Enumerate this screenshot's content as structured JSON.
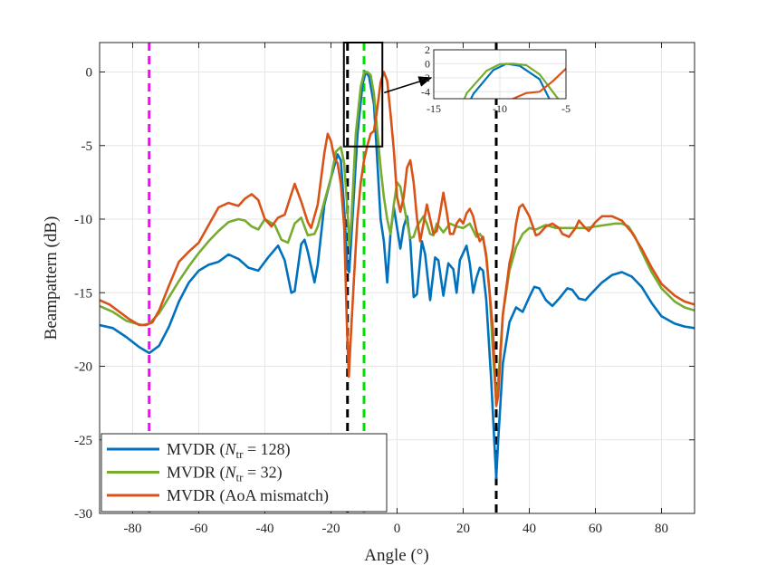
{
  "chart_data": {
    "type": "line",
    "title": "",
    "xlabel": "Angle (°)",
    "ylabel": "Beampattern (dB)",
    "xlim": [
      -90,
      90
    ],
    "ylim": [
      -30,
      2
    ],
    "xticks": [
      -80,
      -60,
      -40,
      -20,
      0,
      20,
      40,
      60,
      80
    ],
    "yticks": [
      0,
      -5,
      -10,
      -15,
      -20,
      -25,
      -30
    ],
    "grid": true,
    "legend_position": "bottom-left",
    "legend": [
      {
        "prefix": "MVDR (",
        "sym": "N",
        "sub": "tr",
        "suffix": " = 128)"
      },
      {
        "prefix": "MVDR (",
        "sym": "N",
        "sub": "tr",
        "suffix": " = 32)"
      },
      {
        "prefix": "MVDR (AoA mismatch)",
        "sym": "",
        "sub": "",
        "suffix": ""
      }
    ],
    "series": [
      {
        "color": "#0072BD",
        "points": [
          [
            -90,
            -17.2
          ],
          [
            -86,
            -17.4
          ],
          [
            -82,
            -18
          ],
          [
            -78,
            -18.7
          ],
          [
            -75,
            -19.1
          ],
          [
            -72,
            -18.6
          ],
          [
            -69,
            -17.3
          ],
          [
            -66,
            -15.6
          ],
          [
            -63,
            -14.3
          ],
          [
            -60,
            -13.5
          ],
          [
            -57,
            -13.1
          ],
          [
            -54,
            -12.9
          ],
          [
            -51,
            -12.4
          ],
          [
            -48,
            -12.7
          ],
          [
            -45,
            -13.3
          ],
          [
            -42,
            -13.5
          ],
          [
            -39,
            -12.6
          ],
          [
            -36,
            -11.8
          ],
          [
            -34,
            -12.8
          ],
          [
            -32,
            -15
          ],
          [
            -31,
            -14.9
          ],
          [
            -29,
            -11.7
          ],
          [
            -28,
            -11.4
          ],
          [
            -27,
            -12.2
          ],
          [
            -25,
            -14.3
          ],
          [
            -24,
            -13.1
          ],
          [
            -22,
            -9
          ],
          [
            -20,
            -7.2
          ],
          [
            -18,
            -5.6
          ],
          [
            -17,
            -6
          ],
          [
            -16,
            -9.3
          ],
          [
            -15,
            -13.4
          ],
          [
            -14.5,
            -13.6
          ],
          [
            -13.5,
            -10
          ],
          [
            -12,
            -4.3
          ],
          [
            -10.5,
            -0.9
          ],
          [
            -9.5,
            0
          ],
          [
            -8.5,
            -0.3
          ],
          [
            -7,
            -2.2
          ],
          [
            -6,
            -6
          ],
          [
            -5,
            -10
          ],
          [
            -4,
            -11.5
          ],
          [
            -3,
            -14.3
          ],
          [
            -2,
            -11
          ],
          [
            -1,
            -9.2
          ],
          [
            0,
            -10.6
          ],
          [
            1,
            -12
          ],
          [
            2,
            -10.5
          ],
          [
            3,
            -9.8
          ],
          [
            4,
            -11.5
          ],
          [
            5,
            -15.3
          ],
          [
            6,
            -15.1
          ],
          [
            7.5,
            -11.5
          ],
          [
            8.5,
            -12.4
          ],
          [
            10,
            -15.5
          ],
          [
            11.5,
            -12.6
          ],
          [
            12.5,
            -12.8
          ],
          [
            14,
            -15.2
          ],
          [
            15.5,
            -13
          ],
          [
            17,
            -13.4
          ],
          [
            18,
            -15
          ],
          [
            19,
            -12.8
          ],
          [
            21,
            -11.8
          ],
          [
            22,
            -13
          ],
          [
            23,
            -15
          ],
          [
            24,
            -14
          ],
          [
            25,
            -13.3
          ],
          [
            26,
            -13.5
          ],
          [
            27,
            -15.5
          ],
          [
            28.5,
            -21
          ],
          [
            29.5,
            -25.5
          ],
          [
            30,
            -27.6
          ],
          [
            30.6,
            -25
          ],
          [
            32,
            -19.8
          ],
          [
            34,
            -17
          ],
          [
            36,
            -16
          ],
          [
            38,
            -16.3
          ],
          [
            40,
            -15.3
          ],
          [
            41.5,
            -14.6
          ],
          [
            43,
            -14.7
          ],
          [
            45,
            -15.5
          ],
          [
            47,
            -15.9
          ],
          [
            49,
            -15.4
          ],
          [
            51.5,
            -14.7
          ],
          [
            53,
            -14.8
          ],
          [
            55,
            -15.4
          ],
          [
            57,
            -15.5
          ],
          [
            59,
            -15
          ],
          [
            62,
            -14.3
          ],
          [
            65,
            -13.8
          ],
          [
            68,
            -13.6
          ],
          [
            71,
            -13.9
          ],
          [
            74,
            -14.6
          ],
          [
            77,
            -15.7
          ],
          [
            80,
            -16.6
          ],
          [
            84,
            -17.1
          ],
          [
            87,
            -17.3
          ],
          [
            90,
            -17.4
          ]
        ]
      },
      {
        "color": "#77AC30",
        "points": [
          [
            -90,
            -15.9
          ],
          [
            -86,
            -16.3
          ],
          [
            -82,
            -16.9
          ],
          [
            -79,
            -17.1
          ],
          [
            -77,
            -17.2
          ],
          [
            -75,
            -17.1
          ],
          [
            -72,
            -16.4
          ],
          [
            -69,
            -15.3
          ],
          [
            -66,
            -14.2
          ],
          [
            -63,
            -13.2
          ],
          [
            -60,
            -12.3
          ],
          [
            -57,
            -11.5
          ],
          [
            -54,
            -10.8
          ],
          [
            -51,
            -10.2
          ],
          [
            -48,
            -10
          ],
          [
            -46,
            -10.1
          ],
          [
            -44,
            -10.5
          ],
          [
            -42,
            -10.7
          ],
          [
            -40,
            -10
          ],
          [
            -37,
            -10.4
          ],
          [
            -35,
            -11.4
          ],
          [
            -33,
            -11.6
          ],
          [
            -31,
            -10.3
          ],
          [
            -29,
            -9.9
          ],
          [
            -27,
            -11.1
          ],
          [
            -25,
            -11
          ],
          [
            -24,
            -10.5
          ],
          [
            -22,
            -8.8
          ],
          [
            -20,
            -7.2
          ],
          [
            -18.5,
            -5.4
          ],
          [
            -17,
            -5.1
          ],
          [
            -16,
            -6.2
          ],
          [
            -15,
            -9.5
          ],
          [
            -14.5,
            -11.8
          ],
          [
            -13.8,
            -10
          ],
          [
            -12.5,
            -4.2
          ],
          [
            -11,
            -1
          ],
          [
            -10,
            -0.05
          ],
          [
            -9,
            0
          ],
          [
            -8,
            -0.2
          ],
          [
            -7,
            -1.5
          ],
          [
            -6,
            -4
          ],
          [
            -5,
            -6.5
          ],
          [
            -4,
            -8.5
          ],
          [
            -3,
            -10
          ],
          [
            -2,
            -11
          ],
          [
            -1,
            -9
          ],
          [
            0,
            -7.5
          ],
          [
            1,
            -7.8
          ],
          [
            2,
            -9
          ],
          [
            3,
            -10.2
          ],
          [
            4,
            -11.3
          ],
          [
            5,
            -11.2
          ],
          [
            6,
            -10.5
          ],
          [
            8,
            -9.8
          ],
          [
            9,
            -10.3
          ],
          [
            10,
            -11
          ],
          [
            11,
            -11.1
          ],
          [
            12,
            -10.3
          ],
          [
            14,
            -10.9
          ],
          [
            16,
            -10.3
          ],
          [
            18,
            -10.5
          ],
          [
            20,
            -10.6
          ],
          [
            22,
            -10.3
          ],
          [
            24,
            -11.2
          ],
          [
            25,
            -11
          ],
          [
            26,
            -11.3
          ],
          [
            27,
            -12.4
          ],
          [
            28,
            -15
          ],
          [
            29,
            -19
          ],
          [
            30,
            -22.4
          ],
          [
            30.6,
            -21
          ],
          [
            32,
            -16.5
          ],
          [
            34,
            -13.5
          ],
          [
            36,
            -11.9
          ],
          [
            38,
            -11
          ],
          [
            40,
            -10.6
          ],
          [
            42,
            -10.7
          ],
          [
            45,
            -10.4
          ],
          [
            48,
            -10.6
          ],
          [
            51,
            -10.6
          ],
          [
            54,
            -10.6
          ],
          [
            57,
            -10.6
          ],
          [
            60,
            -10.5
          ],
          [
            63,
            -10.4
          ],
          [
            66,
            -10.3
          ],
          [
            68,
            -10.3
          ],
          [
            70,
            -10.5
          ],
          [
            72,
            -11.2
          ],
          [
            74,
            -12.2
          ],
          [
            77,
            -13.6
          ],
          [
            80,
            -14.7
          ],
          [
            84,
            -15.6
          ],
          [
            87,
            -16
          ],
          [
            90,
            -16.2
          ]
        ]
      },
      {
        "color": "#D95319",
        "points": [
          [
            -90,
            -15.5
          ],
          [
            -87,
            -15.8
          ],
          [
            -84,
            -16.3
          ],
          [
            -81,
            -16.8
          ],
          [
            -78,
            -17.2
          ],
          [
            -76,
            -17.2
          ],
          [
            -74,
            -17
          ],
          [
            -72,
            -16.2
          ],
          [
            -69,
            -14.5
          ],
          [
            -66,
            -12.9
          ],
          [
            -63,
            -12.2
          ],
          [
            -60,
            -11.6
          ],
          [
            -57,
            -10.4
          ],
          [
            -54,
            -9.2
          ],
          [
            -51,
            -8.9
          ],
          [
            -48,
            -9.1
          ],
          [
            -46,
            -8.6
          ],
          [
            -44,
            -8.3
          ],
          [
            -42,
            -8.7
          ],
          [
            -40,
            -10
          ],
          [
            -38,
            -10.5
          ],
          [
            -36,
            -9.9
          ],
          [
            -34,
            -9.7
          ],
          [
            -32,
            -8.3
          ],
          [
            -31,
            -7.6
          ],
          [
            -29,
            -8.8
          ],
          [
            -27,
            -10.2
          ],
          [
            -26,
            -10.6
          ],
          [
            -24,
            -9
          ],
          [
            -22,
            -5.5
          ],
          [
            -21,
            -4.2
          ],
          [
            -20,
            -4.7
          ],
          [
            -19,
            -5.8
          ],
          [
            -18,
            -6.2
          ],
          [
            -17,
            -7.6
          ],
          [
            -16,
            -10.5
          ],
          [
            -15.2,
            -17
          ],
          [
            -14.6,
            -20.7
          ],
          [
            -14,
            -18
          ],
          [
            -13,
            -13.8
          ],
          [
            -12,
            -10
          ],
          [
            -11,
            -7.5
          ],
          [
            -10,
            -6
          ],
          [
            -9,
            -5
          ],
          [
            -8,
            -4.2
          ],
          [
            -7,
            -4
          ],
          [
            -6,
            -2.5
          ],
          [
            -5,
            -0.7
          ],
          [
            -4,
            0
          ],
          [
            -3,
            -0.6
          ],
          [
            -2,
            -2.8
          ],
          [
            -1,
            -5.3
          ],
          [
            0,
            -8.5
          ],
          [
            1,
            -9.5
          ],
          [
            2,
            -8.5
          ],
          [
            3,
            -6.5
          ],
          [
            4,
            -6
          ],
          [
            5,
            -7.5
          ],
          [
            6,
            -9.9
          ],
          [
            7,
            -11.5
          ],
          [
            8,
            -10.3
          ],
          [
            9,
            -9
          ],
          [
            10,
            -10
          ],
          [
            11,
            -11
          ],
          [
            12,
            -10.8
          ],
          [
            13,
            -9.6
          ],
          [
            14,
            -8.2
          ],
          [
            15,
            -9.5
          ],
          [
            16,
            -11
          ],
          [
            17,
            -11
          ],
          [
            18,
            -10.3
          ],
          [
            19,
            -10
          ],
          [
            20,
            -10.3
          ],
          [
            21,
            -9.6
          ],
          [
            22,
            -9.3
          ],
          [
            23,
            -9.8
          ],
          [
            24,
            -10.8
          ],
          [
            25,
            -11.5
          ],
          [
            26,
            -11.2
          ],
          [
            27,
            -12.6
          ],
          [
            28,
            -15
          ],
          [
            29,
            -17.5
          ],
          [
            30,
            -22.7
          ],
          [
            30.6,
            -22
          ],
          [
            32,
            -16.5
          ],
          [
            34,
            -13
          ],
          [
            35,
            -12
          ],
          [
            36,
            -10.3
          ],
          [
            37,
            -9.2
          ],
          [
            38,
            -9
          ],
          [
            40,
            -9.8
          ],
          [
            42,
            -11.1
          ],
          [
            43,
            -11
          ],
          [
            45,
            -10.5
          ],
          [
            47,
            -10.3
          ],
          [
            49,
            -10.6
          ],
          [
            50,
            -11
          ],
          [
            52,
            -11.2
          ],
          [
            54,
            -10.6
          ],
          [
            55,
            -10.1
          ],
          [
            57,
            -10.6
          ],
          [
            58,
            -10.8
          ],
          [
            60,
            -10.2
          ],
          [
            62,
            -9.8
          ],
          [
            65,
            -9.8
          ],
          [
            68,
            -10.1
          ],
          [
            71,
            -10.9
          ],
          [
            74,
            -12
          ],
          [
            77,
            -13.3
          ],
          [
            80,
            -14.4
          ],
          [
            84,
            -15.2
          ],
          [
            87,
            -15.6
          ],
          [
            90,
            -15.8
          ]
        ]
      }
    ],
    "reference_lines": [
      {
        "x": -75,
        "color": "#FF00FF"
      },
      {
        "x": -15,
        "color": "#000000"
      },
      {
        "x": -10,
        "color": "#00E000"
      },
      {
        "x": 30,
        "color": "#000000"
      }
    ],
    "zoom_box": {
      "xlim": [
        -15,
        -5
      ],
      "ylim": [
        -5,
        2
      ]
    },
    "inset": {
      "xlim": [
        -15,
        -5
      ],
      "ylim": [
        -5,
        2
      ],
      "xticks": [
        -15,
        -10,
        -5
      ],
      "yticks": [
        2,
        0,
        -2,
        -4
      ]
    }
  }
}
